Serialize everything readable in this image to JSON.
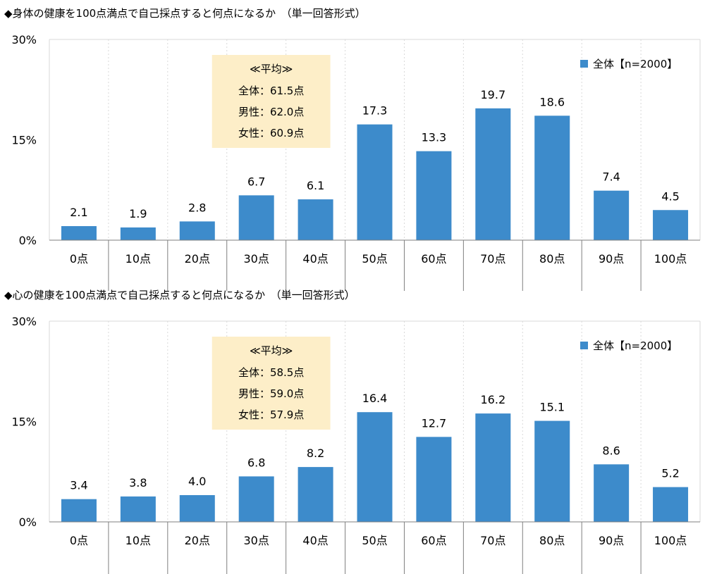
{
  "colors": {
    "bar": "#3d8bcb",
    "avg_box": "#fdeec8",
    "grid": "#d9d9d9",
    "axis": "#7f7f7f",
    "frame": "#d9d9d9"
  },
  "chart_data": [
    {
      "type": "bar",
      "title": "◆身体の健康を100点満点で自己採点すると何点になるか　（単一回答形式）",
      "categories": [
        "0点",
        "10点",
        "20点",
        "30点",
        "40点",
        "50点",
        "60点",
        "70点",
        "80点",
        "90点",
        "100点"
      ],
      "series": [
        {
          "name": "全体【n=2000】",
          "values": [
            2.1,
            1.9,
            2.8,
            6.7,
            6.1,
            17.3,
            13.3,
            19.7,
            18.6,
            7.4,
            4.5
          ]
        }
      ],
      "value_labels": [
        "2.1",
        "1.9",
        "2.8",
        "6.7",
        "6.1",
        "17.3",
        "13.3",
        "19.7",
        "18.6",
        "7.4",
        "4.5"
      ],
      "ylim": [
        0,
        30
      ],
      "yticks": [
        0,
        15,
        30
      ],
      "ytick_labels": [
        "0%",
        "15%",
        "30%"
      ],
      "legend_position": "top-right",
      "grid": "vertical dotted",
      "average_box": {
        "heading": "≪平均≫",
        "lines": [
          "全体：61.5点",
          "男性：62.0点",
          "女性：60.9点"
        ]
      }
    },
    {
      "type": "bar",
      "title": "◆心の健康を100点満点で自己採点すると何点になるか　（単一回答形式）",
      "categories": [
        "0点",
        "10点",
        "20点",
        "30点",
        "40点",
        "50点",
        "60点",
        "70点",
        "80点",
        "90点",
        "100点"
      ],
      "series": [
        {
          "name": "全体【n=2000】",
          "values": [
            3.4,
            3.8,
            4.0,
            6.8,
            8.2,
            16.4,
            12.7,
            16.2,
            15.1,
            8.6,
            5.2
          ]
        }
      ],
      "value_labels": [
        "3.4",
        "3.8",
        "4.0",
        "6.8",
        "8.2",
        "16.4",
        "12.7",
        "16.2",
        "15.1",
        "8.6",
        "5.2"
      ],
      "ylim": [
        0,
        30
      ],
      "yticks": [
        0,
        15,
        30
      ],
      "ytick_labels": [
        "0%",
        "15%",
        "30%"
      ],
      "legend_position": "top-right",
      "grid": "vertical dotted",
      "average_box": {
        "heading": "≪平均≫",
        "lines": [
          "全体：58.5点",
          "男性：59.0点",
          "女性：57.9点"
        ]
      }
    }
  ]
}
